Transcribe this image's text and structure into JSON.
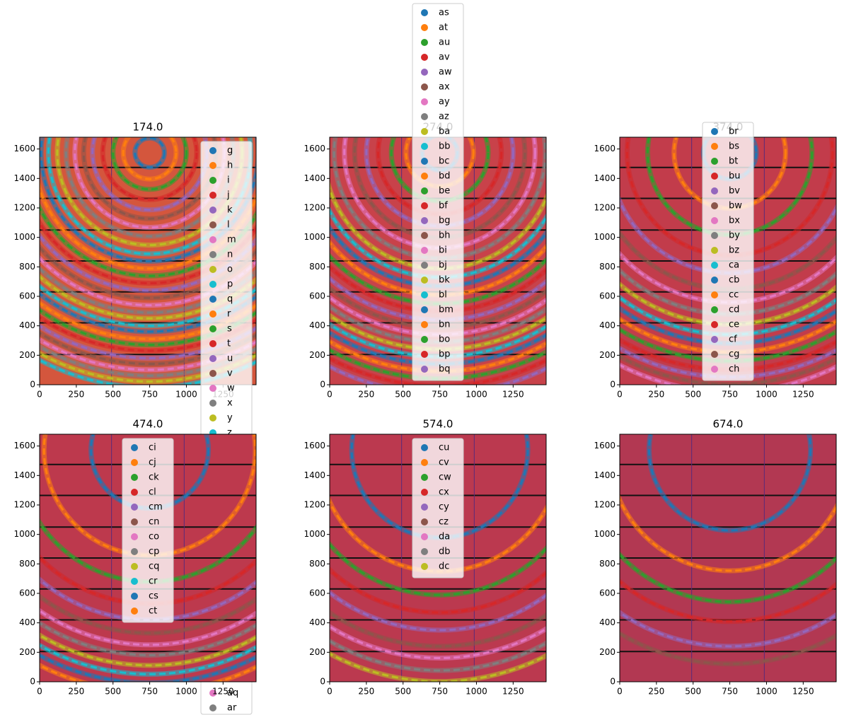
{
  "chart_data": [
    {
      "type": "rings",
      "title": "174.0",
      "background": "#d4563d",
      "xlim": [
        0,
        1475
      ],
      "ylim": [
        0,
        1680
      ],
      "xticks": [
        0,
        250,
        500,
        750,
        1000,
        1250
      ],
      "yticks": [
        0,
        200,
        400,
        600,
        800,
        1000,
        1200,
        1400,
        1600
      ],
      "center": [
        750,
        1575
      ],
      "ring_radii": [
        100,
        180,
        250,
        320,
        390,
        450,
        510,
        570,
        630,
        690,
        740,
        790,
        840,
        890,
        940,
        990,
        1040,
        1090,
        1130,
        1180,
        1220,
        1270,
        1310,
        1350,
        1400,
        1440,
        1480,
        1520,
        1560,
        1600
      ],
      "legend_loc": "upper right",
      "legend": [
        "g",
        "h",
        "i",
        "j",
        "k",
        "l",
        "m",
        "n",
        "o",
        "p",
        "q",
        "r",
        "s",
        "t",
        "u",
        "v",
        "w",
        "x",
        "y",
        "z"
      ],
      "legend_tail": [
        {
          "name": "aq",
          "color": "#e377c2"
        },
        {
          "name": "ar",
          "color": "#7f7f7f"
        }
      ]
    },
    {
      "type": "rings",
      "title": "274.0",
      "background": "#c8424a",
      "xlim": [
        0,
        1475
      ],
      "ylim": [
        0,
        1680
      ],
      "xticks": [
        0,
        250,
        500,
        750,
        1000,
        1250
      ],
      "yticks": [
        0,
        200,
        400,
        600,
        800,
        1000,
        1200,
        1400,
        1600
      ],
      "center": [
        750,
        1575
      ],
      "ring_radii": [
        120,
        230,
        330,
        420,
        500,
        580,
        650,
        720,
        790,
        850,
        910,
        970,
        1030,
        1080,
        1140,
        1190,
        1240,
        1290,
        1340,
        1390,
        1440,
        1490,
        1540,
        1590,
        1640
      ],
      "legend_loc": "lower center",
      "legend": [
        "as",
        "at",
        "au",
        "av",
        "aw",
        "ax",
        "ay",
        "az",
        "ba",
        "bb",
        "bc",
        "bd",
        "be",
        "bf",
        "bg",
        "bh",
        "bi",
        "bj",
        "bk",
        "bl",
        "bm",
        "bn",
        "bo",
        "bp",
        "bq"
      ]
    },
    {
      "type": "rings",
      "title": "374.0",
      "background": "#c23c4b",
      "xlim": [
        0,
        1475
      ],
      "ylim": [
        0,
        1680
      ],
      "xticks": [
        0,
        250,
        500,
        750,
        1000,
        1250
      ],
      "yticks": [
        0,
        200,
        400,
        600,
        800,
        1000,
        1200,
        1400,
        1600
      ],
      "center": [
        750,
        1575
      ],
      "ring_radii": [
        180,
        380,
        560,
        700,
        820,
        930,
        1020,
        1100,
        1170,
        1240,
        1300,
        1360,
        1420,
        1480,
        1530,
        1580,
        1630
      ],
      "legend_loc": "lower center",
      "legend": [
        "br",
        "bs",
        "bt",
        "bu",
        "bv",
        "bw",
        "bx",
        "by",
        "bz",
        "ca",
        "cb",
        "cc",
        "cd",
        "ce",
        "cf",
        "cg",
        "ch"
      ]
    },
    {
      "type": "rings",
      "title": "474.0",
      "background": "#bd394d",
      "xlim": [
        0,
        1475
      ],
      "ylim": [
        0,
        1680
      ],
      "xticks": [
        0,
        250,
        500,
        750,
        1000,
        1250
      ],
      "yticks": [
        0,
        200,
        400,
        600,
        800,
        1000,
        1200,
        1400,
        1600
      ],
      "center": [
        750,
        1575
      ],
      "ring_radii": [
        400,
        720,
        900,
        1050,
        1160,
        1250,
        1330,
        1400,
        1470,
        1530,
        1590,
        1650
      ],
      "legend_loc": "upper center",
      "legend": [
        "ci",
        "cj",
        "ck",
        "cl",
        "cm",
        "cn",
        "co",
        "cp",
        "cq",
        "cr",
        "cs",
        "ct"
      ]
    },
    {
      "type": "rings",
      "title": "574.0",
      "background": "#bb394f",
      "xlim": [
        0,
        1475
      ],
      "ylim": [
        0,
        1680
      ],
      "xticks": [
        0,
        250,
        500,
        750,
        1000,
        1250
      ],
      "yticks": [
        0,
        200,
        400,
        600,
        800,
        1000,
        1200,
        1400,
        1600
      ],
      "center": [
        750,
        1575
      ],
      "ring_radii": [
        600,
        830,
        990,
        1110,
        1230,
        1340,
        1420,
        1505,
        1580
      ],
      "legend_loc": "upper center",
      "legend": [
        "cu",
        "cv",
        "cw",
        "cx",
        "cy",
        "cz",
        "da",
        "db",
        "dc"
      ]
    },
    {
      "type": "rings",
      "title": "674.0",
      "background": "#b23852",
      "xlim": [
        0,
        1475
      ],
      "ylim": [
        0,
        1680
      ],
      "xticks": [
        0,
        250,
        500,
        750,
        1000,
        1250
      ],
      "yticks": [
        0,
        200,
        400,
        600,
        800,
        1000,
        1200,
        1400,
        1600
      ],
      "center": [
        750,
        1575
      ],
      "ring_radii": [
        550,
        825,
        1037,
        1171,
        1340,
        1460
      ]
    }
  ],
  "palette": [
    "#1f77b4",
    "#ff7f0e",
    "#2ca02c",
    "#d62728",
    "#9467bd",
    "#8c564b",
    "#e377c2",
    "#7f7f7f",
    "#bcbd22",
    "#17becf"
  ]
}
